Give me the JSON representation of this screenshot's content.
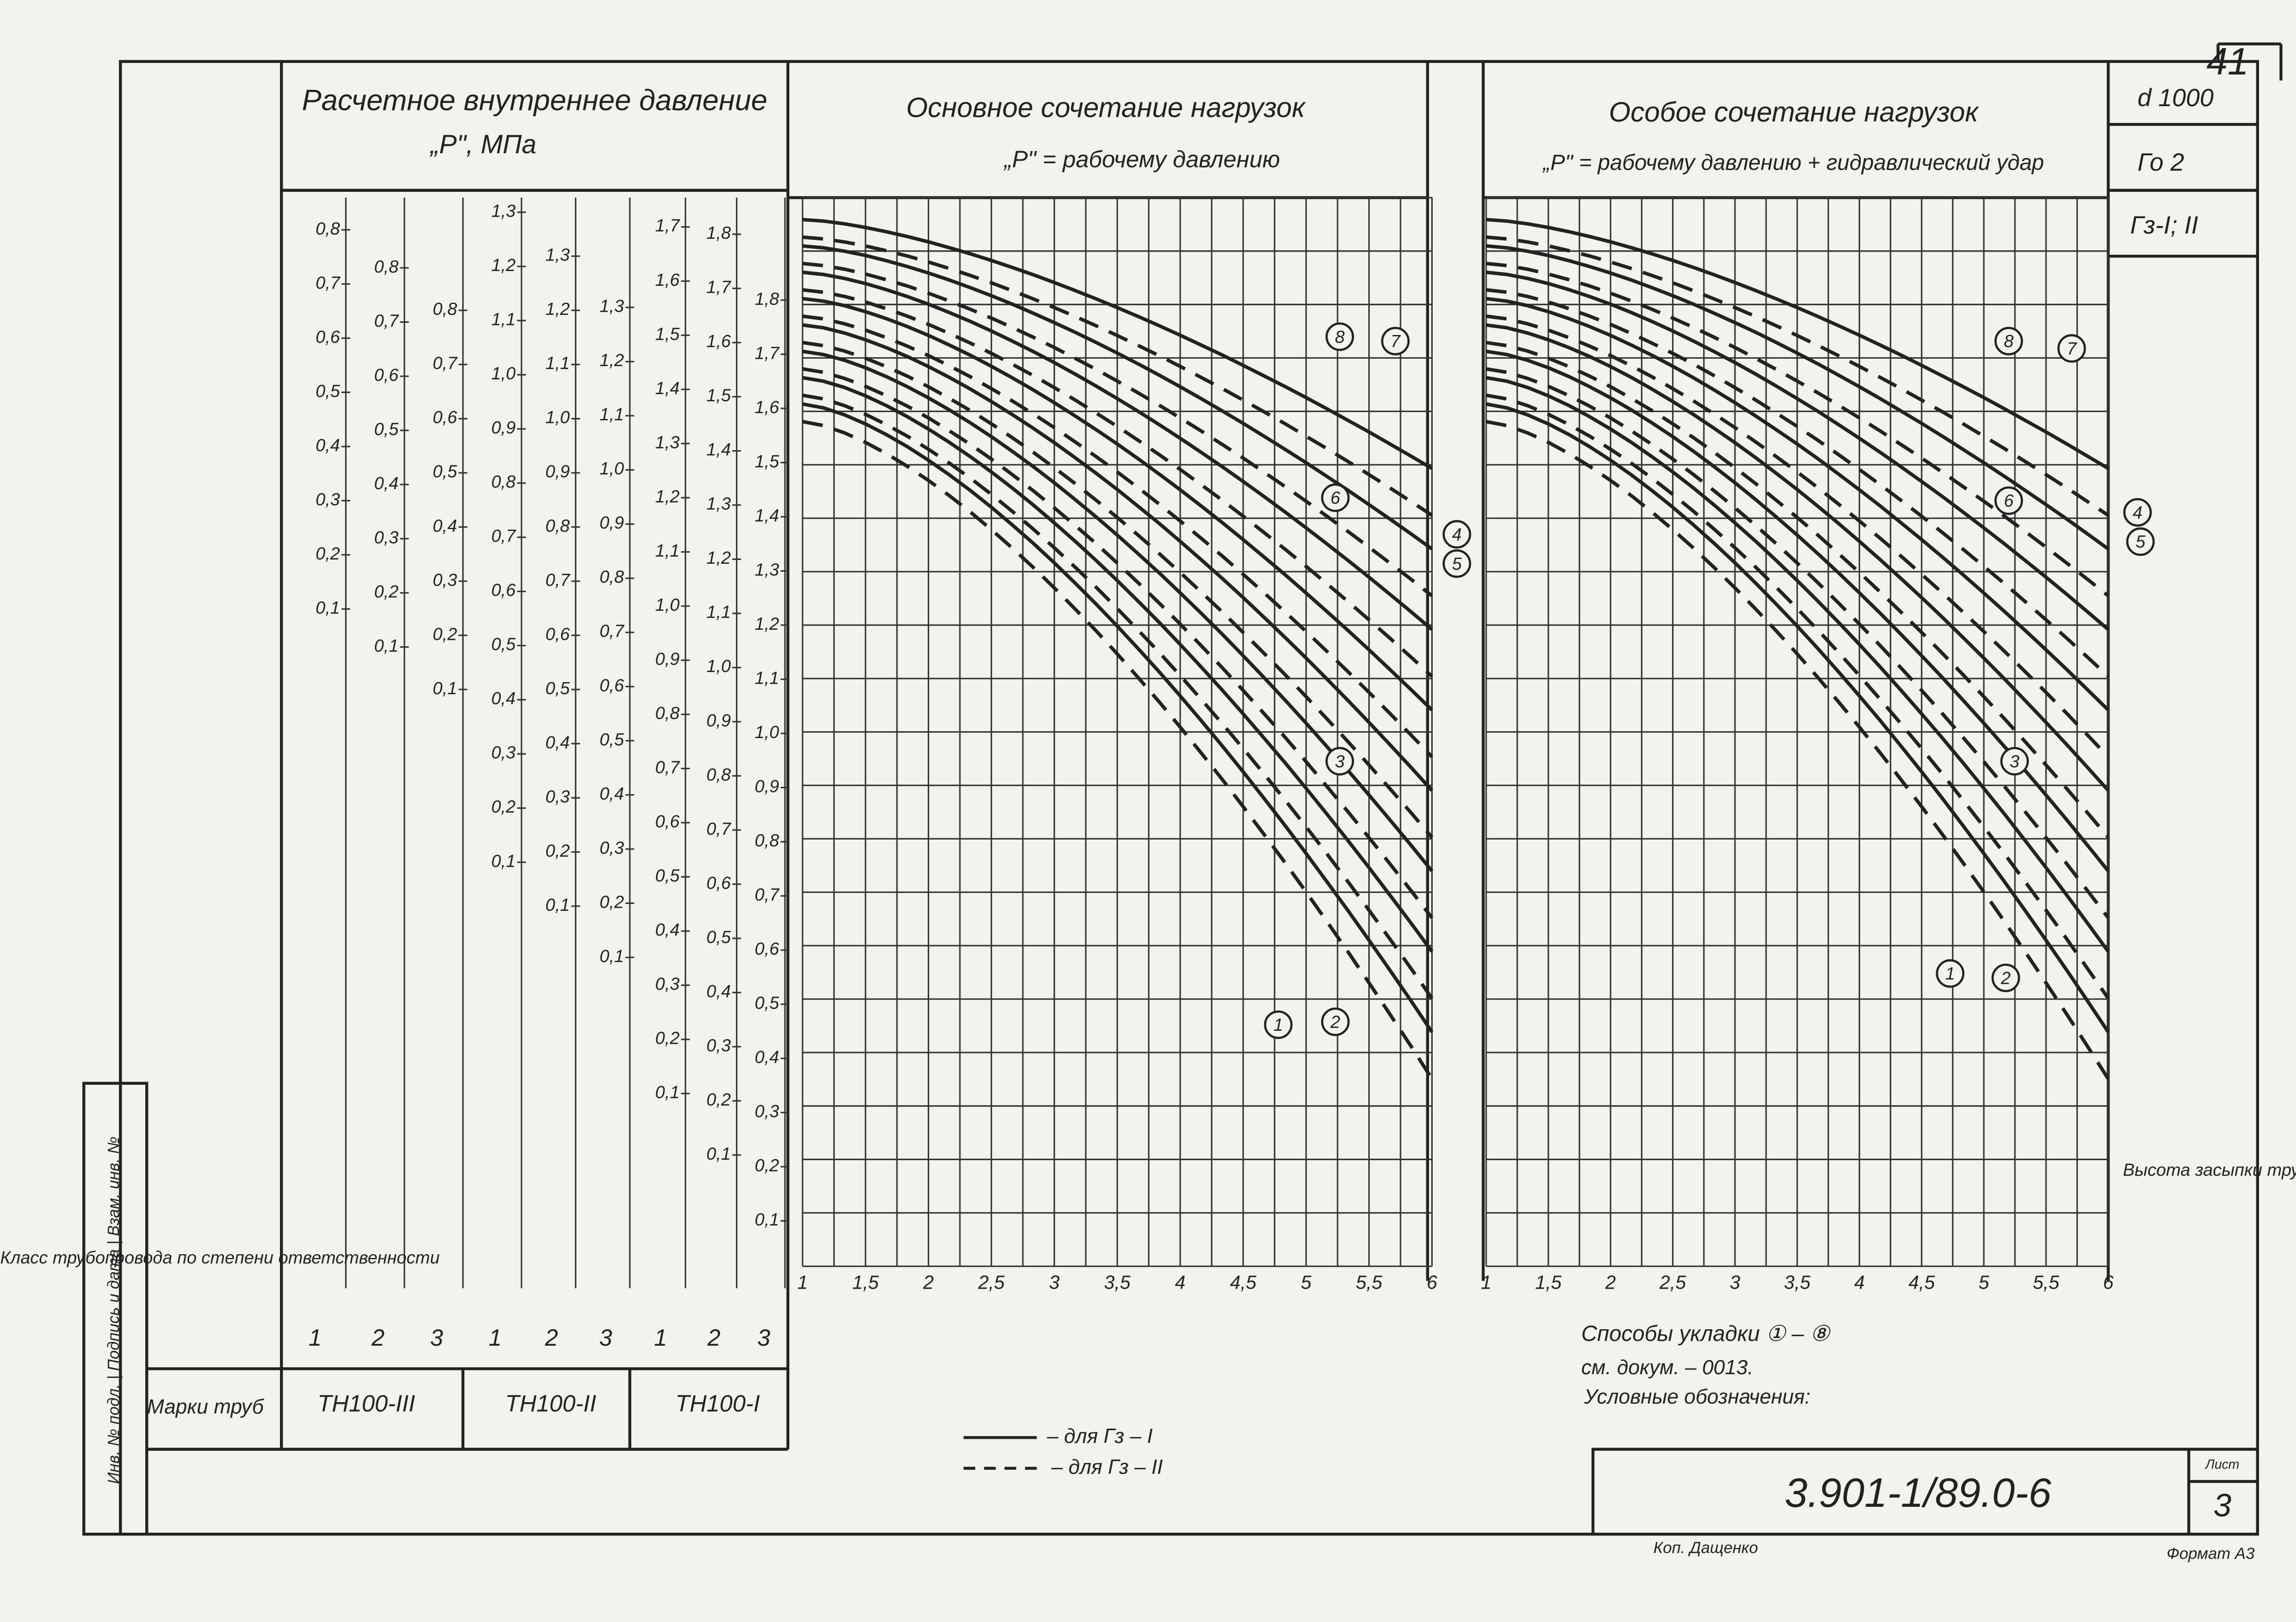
{
  "sheet_number": "41",
  "header": {
    "left_title": "Расчетное внутреннее давление",
    "left_subtitle": "„P\", МПа",
    "main_title": "Основное сочетание нагрузок",
    "main_subtitle": "„P\" = рабочему давлению",
    "special_title": "Особое сочетание нагрузок",
    "special_subtitle": "„P\" = рабочему давлению + гидравлический удар",
    "corner": [
      "d 1000",
      "Го 2",
      "Гз-I; II"
    ]
  },
  "scales": [
    [
      "0,8",
      "0,7",
      "0,6",
      "0,5",
      "0,4",
      "0,3",
      "0,2",
      "0,1"
    ],
    [
      "0,8",
      "0,7",
      "0,6",
      "0,5",
      "0,4",
      "0,3",
      "0,2",
      "0,1"
    ],
    [
      "0,8",
      "0,7",
      "0,6",
      "0,5",
      "0,4",
      "0,3",
      "0,2",
      "0,1"
    ],
    [
      "1,3",
      "1,2",
      "1,1",
      "1,0",
      "0,9",
      "0,8",
      "0,7",
      "0,6",
      "0,5",
      "0,4",
      "0,3",
      "0,2",
      "0,1"
    ],
    [
      "1,3",
      "1,2",
      "1,1",
      "1,0",
      "0,9",
      "0,8",
      "0,7",
      "0,6",
      "0,5",
      "0,4",
      "0,3",
      "0,2",
      "0,1"
    ],
    [
      "1,3",
      "1,2",
      "1,1",
      "1,0",
      "0,9",
      "0,8",
      "0,7",
      "0,6",
      "0,5",
      "0,4",
      "0,3",
      "0,2",
      "0,1"
    ],
    [
      "1,7",
      "1,6",
      "1,5",
      "1,4",
      "1,3",
      "1,2",
      "1,1",
      "1,0",
      "0,9",
      "0,8",
      "0,7",
      "0,6",
      "0,5",
      "0,4",
      "0,3",
      "0,2",
      "0,1"
    ],
    [
      "1,8",
      "1,7",
      "1,6",
      "1,5",
      "1,4",
      "1,3",
      "1,2",
      "1,1",
      "1,0",
      "0,9",
      "0,8",
      "0,7",
      "0,6",
      "0,5",
      "0,4",
      "0,3",
      "0,2",
      "0,1"
    ],
    [
      "1,8",
      "1,7",
      "1,6",
      "1,5",
      "1,4",
      "1,3",
      "1,2",
      "1,1",
      "1,0",
      "0,9",
      "0,8",
      "0,7",
      "0,6",
      "0,5",
      "0,4",
      "0,3",
      "0,2",
      "0,1"
    ]
  ],
  "class_label": "Класс трубопровода по степени ответственности",
  "classes": [
    "1",
    "2",
    "3",
    "1",
    "2",
    "3",
    "1",
    "2",
    "3"
  ],
  "brand_label": "Марки труб",
  "brands": [
    "ТН100-III",
    "ТН100-II",
    "ТН100-I"
  ],
  "x_ticks": [
    "1",
    "1,5",
    "2",
    "2,5",
    "3",
    "3,5",
    "4",
    "4,5",
    "5",
    "5,5",
    "6"
  ],
  "x_axis_title": "Высота засыпки труб „h\", м",
  "curve_labels": [
    "8",
    "7",
    "6",
    "4",
    "5",
    "3",
    "1",
    "2"
  ],
  "legend": {
    "methods": "Способы укладки ① – ⑧",
    "reference": "см. докум. – 0013.",
    "title": "Условные обозначения:",
    "solid": "– для Гз – I",
    "dashed": "– для Гз – II"
  },
  "stamp": {
    "code": "3.901-1/89.0-6",
    "sheet_label": "Лист",
    "sheet": "3",
    "copied": "Коп. Дащенко",
    "format": "Формат А3"
  },
  "side_stamp": "Инв. № подл. | Подпись и дата | Взам. инв. №"
}
